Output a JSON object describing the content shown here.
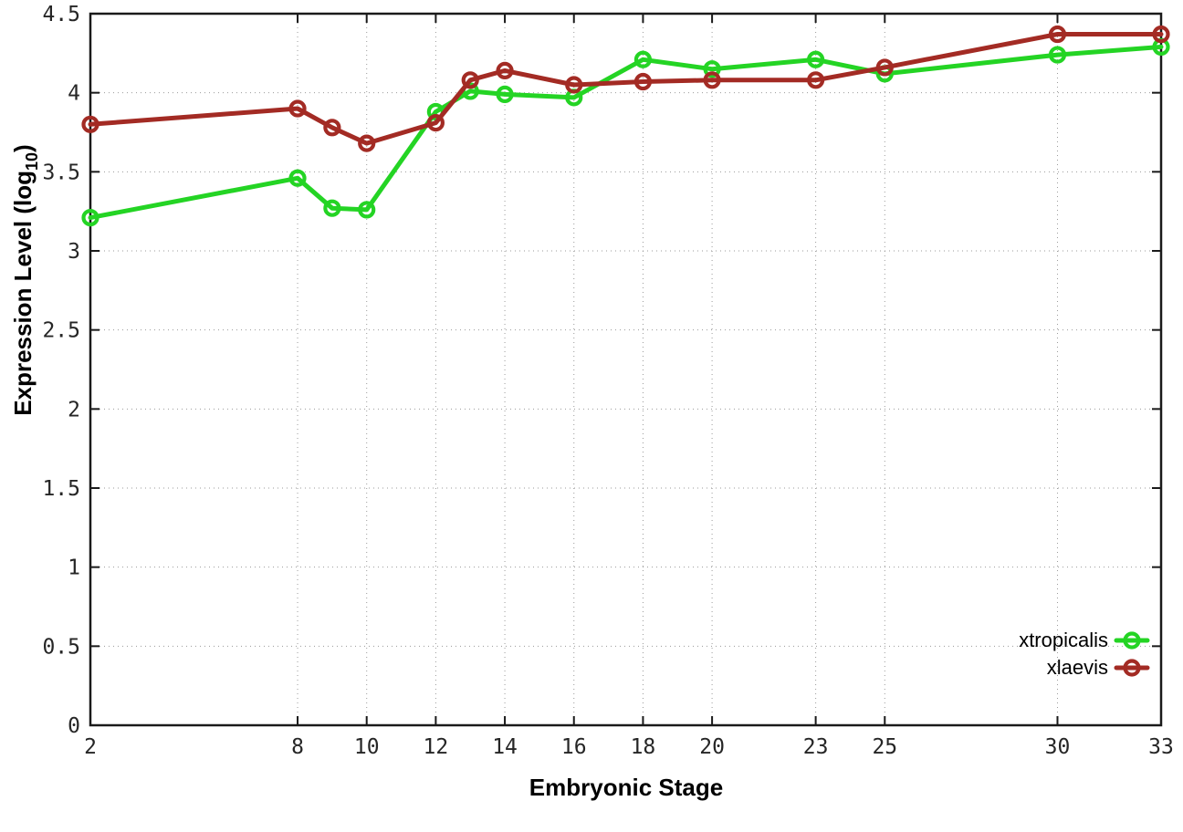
{
  "chart_data": {
    "type": "line",
    "title": "",
    "xlabel": "Embryonic Stage",
    "ylabel": {
      "prefix": "Expression Level (log",
      "sub": "10",
      "suffix": ")"
    },
    "x": [
      2,
      8,
      9,
      10,
      12,
      13,
      14,
      16,
      18,
      20,
      23,
      25,
      30,
      33
    ],
    "xticks": [
      2,
      8,
      10,
      12,
      14,
      16,
      18,
      20,
      23,
      25,
      30,
      33
    ],
    "yticks": [
      0,
      0.5,
      1,
      1.5,
      2,
      2.5,
      3,
      3.5,
      4,
      4.5
    ],
    "ytick_labels": [
      "0",
      "0.5",
      "1",
      "1.5",
      "2",
      "2.5",
      "3",
      "3.5",
      "4",
      "4.5"
    ],
    "xlim": [
      2,
      33
    ],
    "ylim": [
      0,
      4.5
    ],
    "grid": true,
    "legend_position": "inside-right-lower",
    "series": [
      {
        "name": "xtropicalis",
        "color": "#24d424",
        "values": [
          3.21,
          3.46,
          3.27,
          3.26,
          3.88,
          4.01,
          3.99,
          3.97,
          4.21,
          4.15,
          4.21,
          4.12,
          4.24,
          4.29
        ]
      },
      {
        "name": "xlaevis",
        "color": "#a32b24",
        "values": [
          3.8,
          3.9,
          3.78,
          3.68,
          3.81,
          4.08,
          4.14,
          4.05,
          4.07,
          4.08,
          4.08,
          4.16,
          4.37,
          4.37
        ]
      }
    ],
    "style": {
      "background": "#ffffff",
      "border_color": "#1a1a1a",
      "grid_color": "#9a9a9a",
      "tick_label_color": "#262626"
    }
  }
}
